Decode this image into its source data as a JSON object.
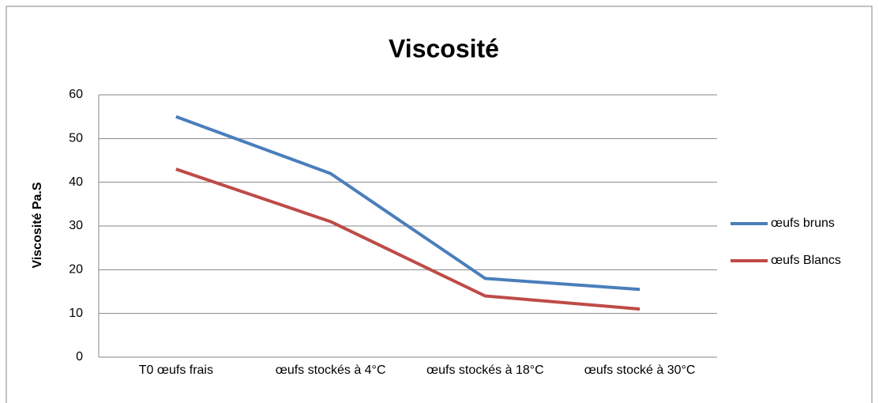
{
  "chart_data": {
    "type": "line",
    "title": "Viscosité",
    "y_label": "Viscosité Pa.S",
    "categories": [
      "T0 œufs frais",
      "œufs stockés à 4°C",
      "œufs stockés à 18°C",
      "œufs stocké à 30°C"
    ],
    "series": [
      {
        "name": "œufs bruns",
        "color": "#4a7ebb",
        "values": [
          55,
          42,
          18,
          15.5
        ]
      },
      {
        "name": "œufs Blancs",
        "color": "#be4b48",
        "values": [
          43,
          31,
          14,
          11
        ]
      }
    ],
    "ylim": [
      0,
      60
    ],
    "yticks": [
      0,
      10,
      20,
      30,
      40,
      50,
      60
    ],
    "grid": true,
    "legend": "right"
  }
}
